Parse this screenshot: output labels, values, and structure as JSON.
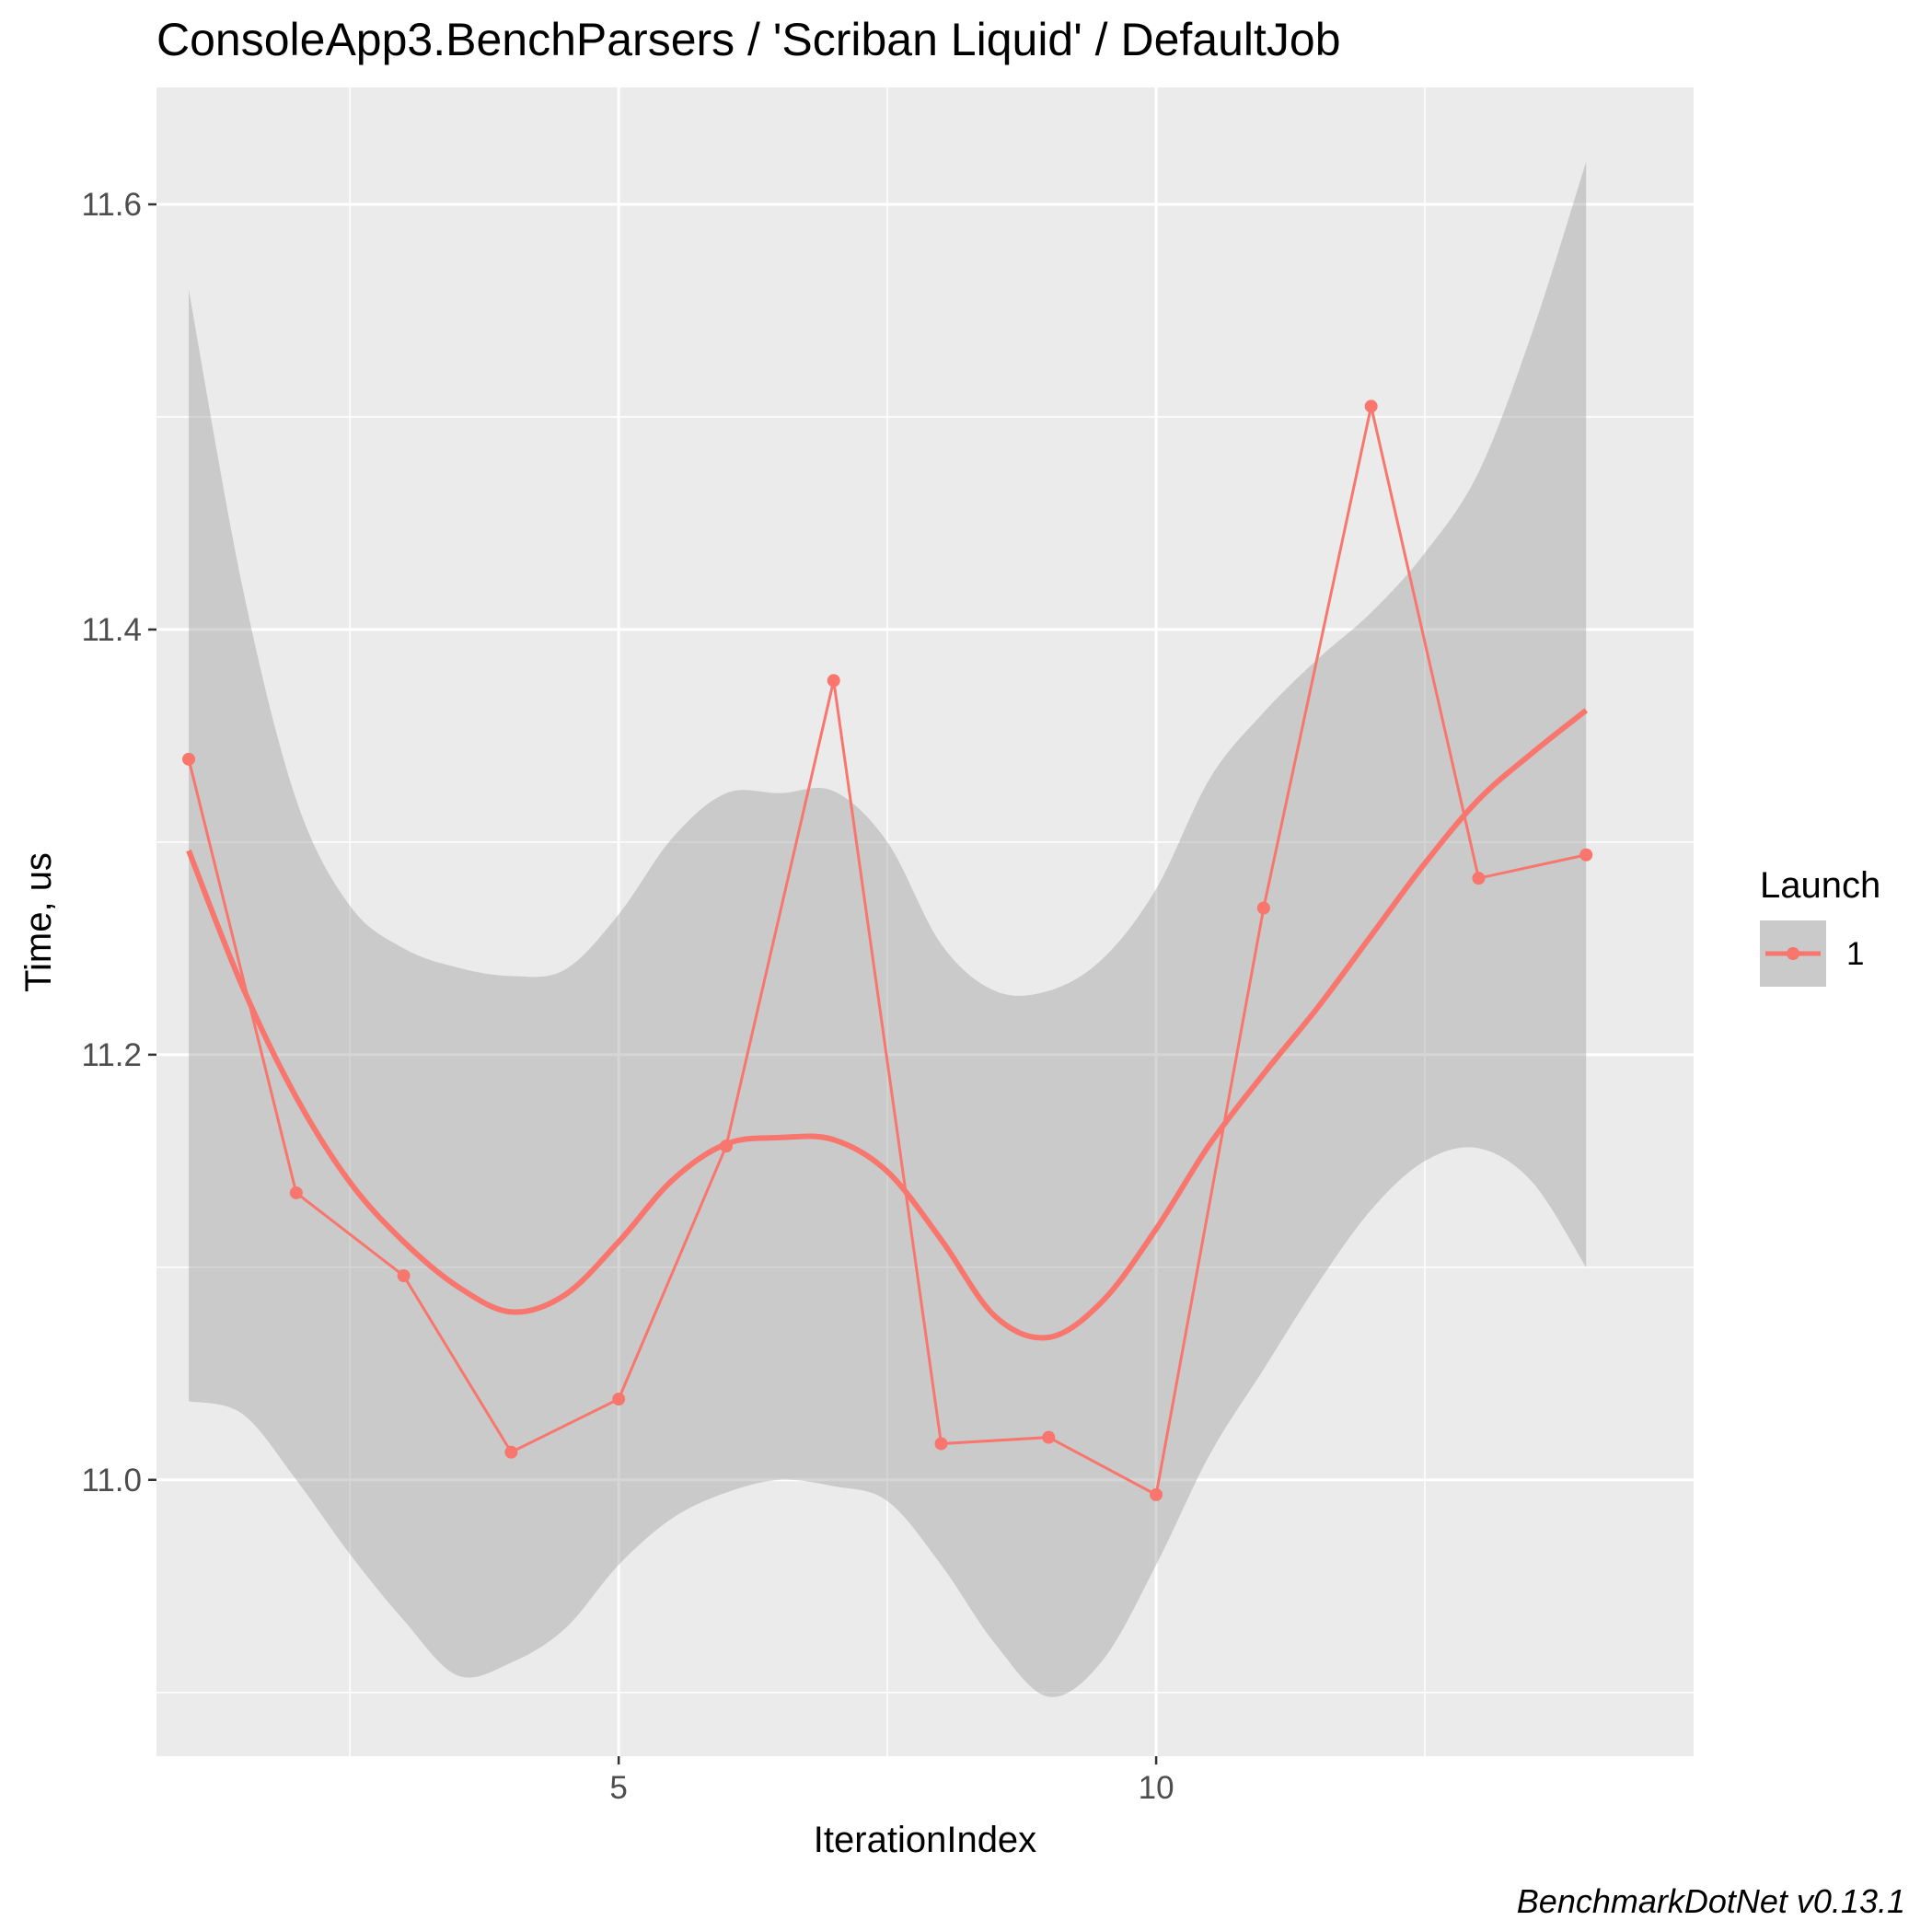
{
  "chart_data": {
    "type": "line",
    "title": "ConsoleApp3.BenchParsers / 'Scriban Liquid' / DefaultJob",
    "xlabel": "IterationIndex",
    "ylabel": "Time, us",
    "xlim": [
      0.7,
      15.0
    ],
    "ylim": [
      10.87,
      11.655
    ],
    "x_ticks": [
      5,
      10
    ],
    "x_tick_labels": [
      "5",
      "10"
    ],
    "y_ticks": [
      11.0,
      11.2,
      11.4,
      11.6
    ],
    "y_tick_labels": [
      "11.0",
      "11.2",
      "11.4",
      "11.6"
    ],
    "grid": true,
    "legend_title": "Launch",
    "legend_position": "right",
    "caption": "BenchmarkDotNet v0.13.1",
    "colors": {
      "series": "#F8766D",
      "panel": "#EBEBEB",
      "ribbon": "#999999",
      "grid": "#FFFFFF"
    },
    "series": [
      {
        "name": "1",
        "x": [
          1,
          2,
          3,
          4,
          5,
          6,
          7,
          8,
          9,
          10,
          11,
          12,
          13,
          14
        ],
        "values": [
          11.339,
          11.135,
          11.096,
          11.013,
          11.038,
          11.157,
          11.376,
          11.017,
          11.02,
          10.993,
          11.269,
          11.505,
          11.283,
          11.294
        ]
      }
    ],
    "smooth": {
      "x": [
        1,
        1.5,
        2,
        2.5,
        3,
        3.5,
        4,
        4.5,
        5,
        5.5,
        6,
        6.5,
        7,
        7.5,
        8,
        8.5,
        9,
        9.5,
        10,
        10.5,
        11,
        11.5,
        12,
        12.5,
        13,
        13.5,
        14
      ],
      "fit": [
        11.296,
        11.232,
        11.18,
        11.14,
        11.112,
        11.091,
        11.079,
        11.087,
        11.112,
        11.141,
        11.158,
        11.161,
        11.16,
        11.145,
        11.113,
        11.077,
        11.067,
        11.084,
        11.118,
        11.158,
        11.191,
        11.222,
        11.256,
        11.29,
        11.32,
        11.342,
        11.362
      ],
      "upper": [
        11.56,
        11.42,
        11.32,
        11.27,
        11.25,
        11.241,
        11.237,
        11.24,
        11.266,
        11.302,
        11.323,
        11.323,
        11.324,
        11.3,
        11.252,
        11.23,
        11.23,
        11.245,
        11.278,
        11.33,
        11.361,
        11.386,
        11.408,
        11.436,
        11.474,
        11.54,
        11.62
      ],
      "lower": [
        11.037,
        11.031,
        11.0,
        10.965,
        10.934,
        10.908,
        10.914,
        10.93,
        10.96,
        10.982,
        10.994,
        11.0,
        10.997,
        10.99,
        10.96,
        10.923,
        10.898,
        10.915,
        10.96,
        11.012,
        11.052,
        11.092,
        11.127,
        11.15,
        11.156,
        11.14,
        11.1
      ]
    }
  }
}
